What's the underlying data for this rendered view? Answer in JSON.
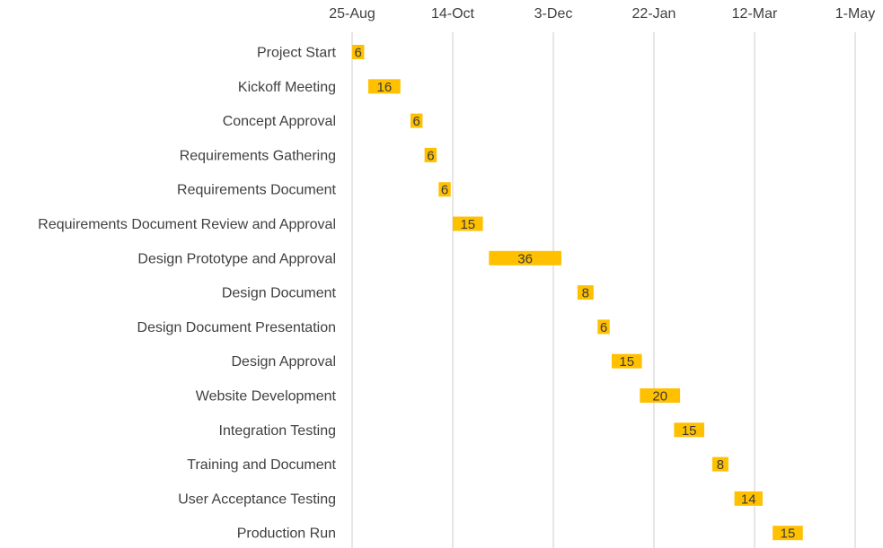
{
  "chart_data": {
    "type": "bar",
    "orientation": "horizontal",
    "stacked_gantt": true,
    "x_axis": {
      "position": "top",
      "ticks": [
        "25-Aug",
        "14-Oct",
        "3-Dec",
        "22-Jan",
        "12-Mar",
        "1-May"
      ],
      "tick_days": [
        0,
        50,
        100,
        150,
        200,
        250
      ],
      "range_days": [
        0,
        250
      ],
      "gridlines": true
    },
    "categories": [
      "Project Start",
      "Kickoff Meeting",
      "Concept Approval",
      "Requirements Gathering",
      "Requirements Document",
      "Requirements Document Review and Approval",
      "Design Prototype and Approval",
      "Design Document ",
      "Design Document Presentation",
      "Design Approval",
      "Website Development",
      "Integration Testing",
      "Training and Document",
      "User Acceptance Testing",
      "Production Run"
    ],
    "start_days": [
      0,
      8,
      29,
      36,
      43,
      50,
      68,
      112,
      122,
      129,
      143,
      160,
      179,
      190,
      209
    ],
    "durations": [
      6,
      16,
      6,
      6,
      6,
      15,
      36,
      8,
      6,
      15,
      20,
      15,
      8,
      14,
      15
    ],
    "bar_color": "#FFC000",
    "grid_color": "#D9D9D9",
    "text_color": "#404040",
    "legend": "none"
  }
}
